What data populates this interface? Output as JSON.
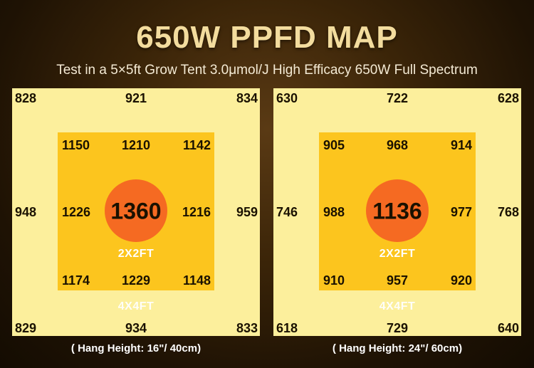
{
  "title": "650W PPFD MAP",
  "subtitle": "Test in a 5×5ft Grow Tent 3.0μmol/J High Efficacy 650W Full Spectrum",
  "maps": [
    {
      "outer": {
        "tl": "828",
        "tc": "921",
        "tr": "834",
        "ml": "948",
        "mr": "959",
        "bl": "829",
        "bc": "934",
        "br": "833"
      },
      "inner": {
        "tl": "1150",
        "tc": "1210",
        "tr": "1142",
        "ml": "1226",
        "mr": "1216",
        "bl": "1174",
        "bc": "1229",
        "br": "1148"
      },
      "center": "1360",
      "inner_label": "2X2FT",
      "outer_label": "4X4FT",
      "hang_height": "( Hang Height: 16\"/ 40cm)"
    },
    {
      "outer": {
        "tl": "630",
        "tc": "722",
        "tr": "628",
        "ml": "746",
        "mr": "768",
        "bl": "618",
        "bc": "729",
        "br": "640"
      },
      "inner": {
        "tl": "905",
        "tc": "968",
        "tr": "914",
        "ml": "988",
        "mr": "977",
        "bl": "910",
        "bc": "957",
        "br": "920"
      },
      "center": "1136",
      "inner_label": "2X2FT",
      "outer_label": "4X4FT",
      "hang_height": "( Hang Height: 24\"/ 60cm)"
    }
  ],
  "colors": {
    "outer_zone": "#fcef9c",
    "inner_zone": "#fcc51e",
    "center": "#f56a22",
    "title": "#f3dc9e"
  }
}
